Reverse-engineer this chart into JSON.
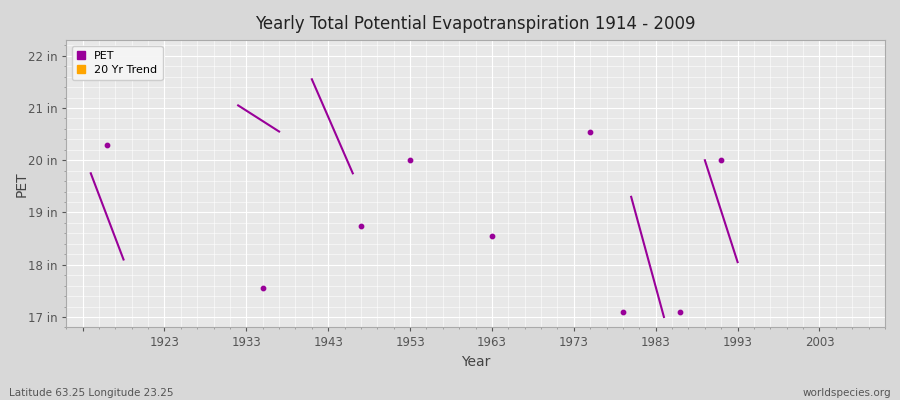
{
  "title": "Yearly Total Potential Evapotranspiration 1914 - 2009",
  "xlabel": "Year",
  "ylabel": "PET",
  "subtitle_left": "Latitude 63.25 Longitude 23.25",
  "subtitle_right": "worldspecies.org",
  "xlim": [
    1911,
    2011
  ],
  "ylim": [
    16.8,
    22.3
  ],
  "yticks": [
    17,
    18,
    19,
    20,
    21,
    22
  ],
  "ytick_labels": [
    "17 in",
    "18 in",
    "19 in",
    "20 in",
    "21 in",
    "22 in"
  ],
  "xticks": [
    1913,
    1923,
    1933,
    1943,
    1953,
    1963,
    1973,
    1983,
    1993,
    2003
  ],
  "xtick_labels": [
    "",
    "1923",
    "1933",
    "1943",
    "1953",
    "1963",
    "1973",
    "1983",
    "1993",
    "2003"
  ],
  "pet_color": "#990099",
  "trend_color": "#FFA500",
  "fig_bg_color": "#d8d8d8",
  "plot_bg_color": "#e8e8e8",
  "grid_color": "#ffffff",
  "scatter_points": [
    [
      1916,
      20.3
    ],
    [
      1935,
      17.55
    ],
    [
      1947,
      18.75
    ],
    [
      1953,
      20.0
    ],
    [
      1963,
      18.55
    ],
    [
      1975,
      20.55
    ],
    [
      1979,
      17.1
    ],
    [
      1986,
      17.1
    ],
    [
      1991,
      20.0
    ]
  ],
  "trend_segments": [
    [
      [
        1914,
        19.75
      ],
      [
        1918,
        18.1
      ]
    ],
    [
      [
        1932,
        21.05
      ],
      [
        1937,
        20.55
      ]
    ],
    [
      [
        1941,
        21.55
      ],
      [
        1946,
        19.75
      ]
    ],
    [
      [
        1980,
        19.3
      ],
      [
        1984,
        17.0
      ]
    ],
    [
      [
        1989,
        20.0
      ],
      [
        1993,
        18.05
      ]
    ]
  ]
}
